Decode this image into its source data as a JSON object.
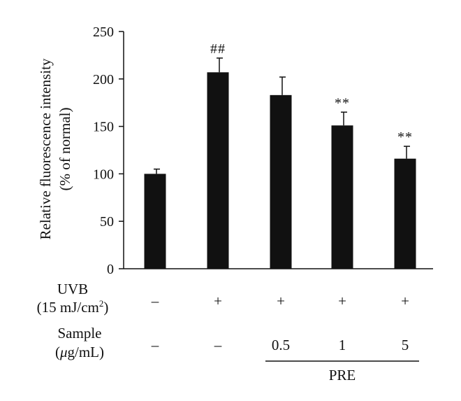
{
  "chart_data": {
    "type": "bar",
    "ylabel_line1": "Relative fluorescence intensity",
    "ylabel_line2": "(% of normal)",
    "ylim": [
      0,
      250
    ],
    "yticks": [
      "0",
      "50",
      "100",
      "150",
      "200",
      "250"
    ],
    "values": [
      100,
      207,
      183,
      151,
      116
    ],
    "errors": [
      5,
      15,
      19,
      14,
      13
    ],
    "annotations": [
      "",
      "##",
      "",
      "**",
      "**"
    ],
    "bar_color": "#111111",
    "grid": false
  },
  "conditions": {
    "uvb_label_line1": "UVB",
    "uvb_label_line2_prefix": "(15 mJ/cm",
    "uvb_label_line2_sup": "2",
    "uvb_label_line2_suffix": ")",
    "uvb_values": [
      "–",
      "+",
      "+",
      "+",
      "+"
    ],
    "sample_label_line1": "Sample",
    "sample_label_mu": "μ",
    "sample_label_rest": "g/mL)",
    "sample_label_open": "(",
    "sample_values": [
      "–",
      "–",
      "0.5",
      "1",
      "5"
    ],
    "group_label": "PRE"
  }
}
